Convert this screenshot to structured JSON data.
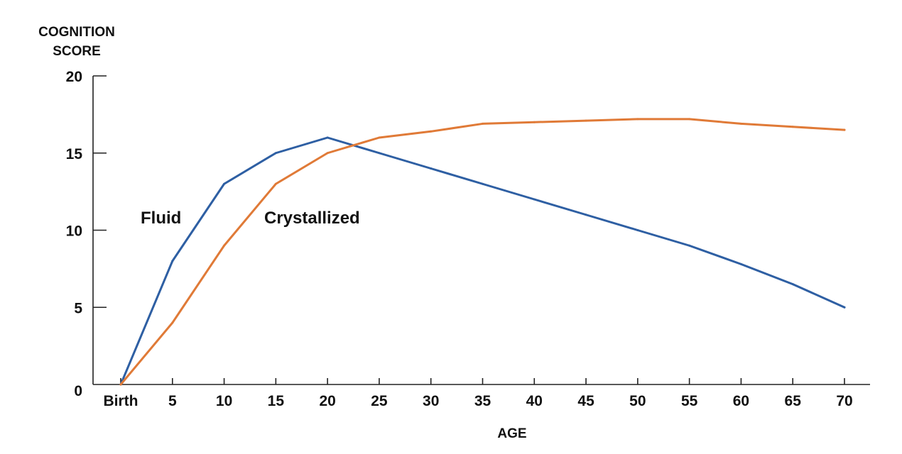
{
  "chart_data": {
    "type": "line",
    "ylabel": [
      "COGNITION",
      "SCORE"
    ],
    "xlabel": "AGE",
    "x": [
      0,
      5,
      10,
      15,
      20,
      25,
      30,
      35,
      40,
      45,
      50,
      55,
      60,
      65,
      70
    ],
    "x_tick_labels": [
      "Birth",
      "5",
      "10",
      "15",
      "20",
      "25",
      "30",
      "35",
      "40",
      "45",
      "50",
      "55",
      "60",
      "65",
      "70"
    ],
    "y_ticks": [
      0,
      5,
      10,
      15,
      20
    ],
    "y_tick_labels": [
      "0",
      "5",
      "10",
      "15",
      "20"
    ],
    "ylim": [
      0,
      20
    ],
    "grid": false,
    "series": [
      {
        "name": "Fluid",
        "color": "#2e5fa3",
        "values": [
          0,
          8,
          13,
          15,
          16,
          15,
          14,
          13,
          12,
          11,
          10,
          9,
          7.8,
          6.5,
          5
        ]
      },
      {
        "name": "Crystallized",
        "color": "#e07a37",
        "values": [
          0,
          4,
          9,
          13,
          15,
          16,
          16.4,
          16.9,
          17,
          17.1,
          17.2,
          17.2,
          16.9,
          16.7,
          16.5
        ]
      }
    ]
  }
}
